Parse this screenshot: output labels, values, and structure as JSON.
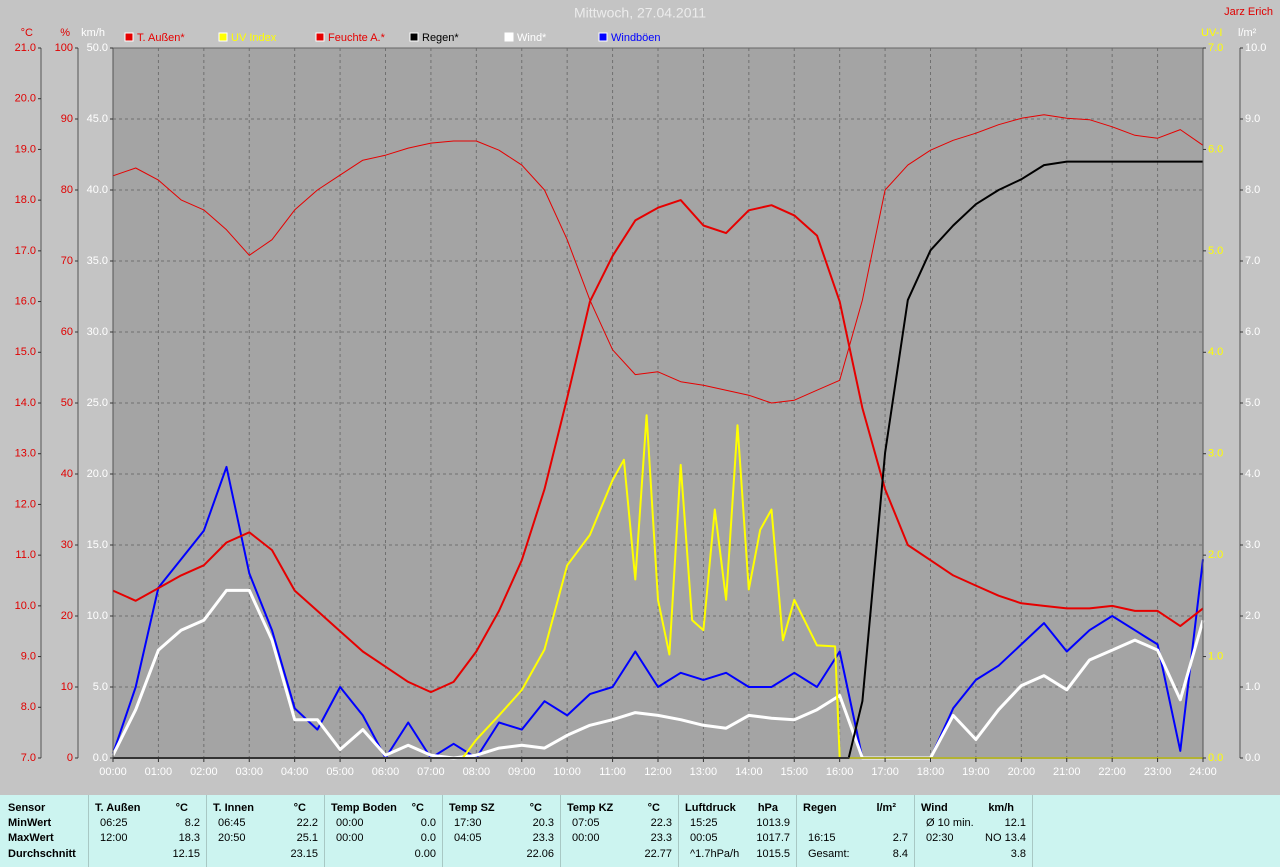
{
  "chart_data": {
    "type": "line",
    "title": "Mittwoch, 27.04.2011",
    "author": "Jarz Erich",
    "xlim": [
      0,
      24
    ],
    "xticks": [
      {
        "value": 0,
        "label": "00:00"
      },
      {
        "value": 1,
        "label": "01:00"
      },
      {
        "value": 2,
        "label": "02:00"
      },
      {
        "value": 3,
        "label": "03:00"
      },
      {
        "value": 4,
        "label": "04:00"
      },
      {
        "value": 5,
        "label": "05:00"
      },
      {
        "value": 6,
        "label": "06:00"
      },
      {
        "value": 7,
        "label": "07:00"
      },
      {
        "value": 8,
        "label": "08:00"
      },
      {
        "value": 9,
        "label": "09:00"
      },
      {
        "value": 10,
        "label": "10:00"
      },
      {
        "value": 11,
        "label": "11:00"
      },
      {
        "value": 12,
        "label": "12:00"
      },
      {
        "value": 13,
        "label": "13:00"
      },
      {
        "value": 14,
        "label": "14:00"
      },
      {
        "value": 15,
        "label": "15:00"
      },
      {
        "value": 16,
        "label": "16:00"
      },
      {
        "value": 17,
        "label": "17:00"
      },
      {
        "value": 18,
        "label": "18:00"
      },
      {
        "value": 19,
        "label": "19:00"
      },
      {
        "value": 20,
        "label": "20:00"
      },
      {
        "value": 21,
        "label": "21:00"
      },
      {
        "value": 22,
        "label": "22:00"
      },
      {
        "value": 23,
        "label": "23:00"
      },
      {
        "value": 24,
        "label": "24:00"
      }
    ],
    "y_axes": [
      {
        "label": "°C",
        "side": "left",
        "color": "#e00000",
        "ylim": [
          7,
          21
        ],
        "yticks": [
          {
            "value": 7,
            "label": "7.0"
          },
          {
            "value": 8,
            "label": "8.0"
          },
          {
            "value": 9,
            "label": "9.0"
          },
          {
            "value": 10,
            "label": "10.0"
          },
          {
            "value": 11,
            "label": "11.0"
          },
          {
            "value": 12,
            "label": "12.0"
          },
          {
            "value": 13,
            "label": "13.0"
          },
          {
            "value": 14,
            "label": "14.0"
          },
          {
            "value": 15,
            "label": "15.0"
          },
          {
            "value": 16,
            "label": "16.0"
          },
          {
            "value": 17,
            "label": "17.0"
          },
          {
            "value": 18,
            "label": "18.0"
          },
          {
            "value": 19,
            "label": "19.0"
          },
          {
            "value": 20,
            "label": "20.0"
          },
          {
            "value": 21,
            "label": "21.0"
          }
        ]
      },
      {
        "label": "%",
        "side": "left",
        "color": "#e00000",
        "ylim": [
          0,
          100
        ],
        "yticks": [
          0,
          10,
          20,
          30,
          40,
          50,
          60,
          70,
          80,
          90,
          100
        ]
      },
      {
        "label": "km/h",
        "side": "left",
        "color": "#ffffff",
        "ylim": [
          0,
          50
        ],
        "grid": true,
        "yticks": [
          {
            "value": 0,
            "label": "0.0"
          },
          {
            "value": 5,
            "label": "5.0"
          },
          {
            "value": 10,
            "label": "10.0"
          },
          {
            "value": 15,
            "label": "15.0"
          },
          {
            "value": 20,
            "label": "20.0"
          },
          {
            "value": 25,
            "label": "25.0"
          },
          {
            "value": 30,
            "label": "30.0"
          },
          {
            "value": 35,
            "label": "35.0"
          },
          {
            "value": 40,
            "label": "40.0"
          },
          {
            "value": 45,
            "label": "45.0"
          },
          {
            "value": 50,
            "label": "50.0"
          }
        ]
      },
      {
        "label": "UV-I",
        "side": "right",
        "color": "#ffff00",
        "ylim": [
          0,
          7
        ],
        "yticks": [
          {
            "value": 0,
            "label": "0.0"
          },
          {
            "value": 1,
            "label": "1.0"
          },
          {
            "value": 2,
            "label": "2.0"
          },
          {
            "value": 3,
            "label": "3.0"
          },
          {
            "value": 4,
            "label": "4.0"
          },
          {
            "value": 5,
            "label": "5.0"
          },
          {
            "value": 6,
            "label": "6.0"
          },
          {
            "value": 7,
            "label": "7.0"
          }
        ]
      },
      {
        "label": "l/m²",
        "side": "right",
        "color": "#ffffff",
        "ylim": [
          0,
          10
        ],
        "yticks": [
          {
            "value": 0,
            "label": "0.0"
          },
          {
            "value": 1,
            "label": "1.0"
          },
          {
            "value": 2,
            "label": "2.0"
          },
          {
            "value": 3,
            "label": "3.0"
          },
          {
            "value": 4,
            "label": "4.0"
          },
          {
            "value": 5,
            "label": "5.0"
          },
          {
            "value": 6,
            "label": "6.0"
          },
          {
            "value": 7,
            "label": "7.0"
          },
          {
            "value": 8,
            "label": "8.0"
          },
          {
            "value": 9,
            "label": "9.0"
          },
          {
            "value": 10,
            "label": "10.0"
          }
        ]
      }
    ],
    "x": [
      0,
      0.5,
      1,
      1.5,
      2,
      2.5,
      3,
      3.5,
      4,
      4.5,
      5,
      5.5,
      6,
      6.5,
      7,
      7.5,
      8,
      8.5,
      9,
      9.5,
      10,
      10.5,
      11,
      11.5,
      12,
      12.5,
      13,
      13.5,
      14,
      14.5,
      15,
      15.5,
      16,
      16.5,
      17,
      17.5,
      18,
      18.5,
      19,
      19.5,
      20,
      20.5,
      21,
      21.5,
      22,
      22.5,
      23,
      23.5,
      24
    ],
    "series": [
      {
        "name": "T. Außen*",
        "color": "#e60000",
        "axis": 0,
        "width": 2,
        "values": [
          10.3,
          10.1,
          10.35,
          10.6,
          10.8,
          11.25,
          11.45,
          11.1,
          10.3,
          9.9,
          9.5,
          9.1,
          8.8,
          8.5,
          8.3,
          8.5,
          9.1,
          9.9,
          10.9,
          12.3,
          14.1,
          16.0,
          16.9,
          17.6,
          17.85,
          18.0,
          17.5,
          17.35,
          17.8,
          17.9,
          17.7,
          17.3,
          16.0,
          13.9,
          12.3,
          11.2,
          10.9,
          10.6,
          10.4,
          10.2,
          10.05,
          10.0,
          9.95,
          9.95,
          10.0,
          9.9,
          9.9,
          9.6,
          9.95
        ]
      },
      {
        "name": "UV Index",
        "color": "#ffff00",
        "axis": 3,
        "width": 2,
        "x": [
          0,
          7.7,
          8,
          8.5,
          9,
          9.5,
          10,
          10.5,
          11,
          11.25,
          11.5,
          11.75,
          12,
          12.25,
          12.5,
          12.75,
          13,
          13.25,
          13.5,
          13.75,
          14,
          14.25,
          14.5,
          14.75,
          15,
          15.5,
          15.9,
          16,
          24
        ],
        "values": [
          0,
          0,
          0.18,
          0.42,
          0.67,
          1.07,
          1.9,
          2.2,
          2.74,
          2.94,
          1.76,
          3.38,
          1.56,
          1.02,
          2.89,
          1.36,
          1.26,
          2.45,
          1.56,
          3.28,
          1.66,
          2.25,
          2.45,
          1.16,
          1.56,
          1.11,
          1.1,
          0,
          0
        ]
      },
      {
        "name": "Feuchte A.*",
        "color": "#e60000",
        "axis": 1,
        "width": 1,
        "values": [
          82,
          83.1,
          81.4,
          78.6,
          77.2,
          74.4,
          70.8,
          73,
          77.2,
          80,
          82.1,
          84.2,
          84.9,
          85.9,
          86.6,
          86.9,
          86.9,
          85.6,
          83.5,
          80,
          73,
          64.5,
          57.5,
          54,
          54.4,
          53,
          52.5,
          51.8,
          51.1,
          50,
          50.4,
          51.8,
          53.2,
          64.5,
          80,
          83.5,
          85.6,
          87,
          88,
          89.2,
          90.1,
          90.6,
          90.1,
          89.9,
          88.9,
          87.7,
          87.3,
          88.5,
          86.3
        ]
      },
      {
        "name": "Regen*",
        "color": "#000000",
        "axis": 4,
        "width": 2,
        "x": [
          0,
          16.2,
          16.5,
          17,
          17.5,
          18,
          18.5,
          19,
          19.5,
          20,
          20.5,
          21,
          24
        ],
        "values": [
          0,
          0,
          0.8,
          4.3,
          6.45,
          7.15,
          7.5,
          7.8,
          8.0,
          8.15,
          8.35,
          8.4,
          8.4
        ]
      },
      {
        "name": "Wind*",
        "color": "#ffffff",
        "axis": 2,
        "width": 3,
        "values": [
          0.2,
          3.4,
          7.6,
          9.0,
          9.7,
          11.8,
          11.8,
          8.3,
          2.7,
          2.7,
          0.6,
          2.0,
          0.2,
          0.9,
          0.2,
          0,
          0.2,
          0.7,
          0.9,
          0.7,
          1.6,
          2.3,
          2.7,
          3.2,
          3.0,
          2.7,
          2.3,
          2.1,
          3.0,
          2.8,
          2.7,
          3.4,
          4.4,
          0,
          0,
          0,
          0,
          3.0,
          1.3,
          3.4,
          5.1,
          5.8,
          4.8,
          6.9,
          7.6,
          8.3,
          7.6,
          4.1,
          9.7
        ]
      },
      {
        "name": "Windböen",
        "color": "#0000ff",
        "axis": 2,
        "width": 2,
        "values": [
          0.3,
          5.0,
          12.0,
          14.0,
          16.0,
          20.5,
          13.0,
          9.0,
          3.5,
          2.0,
          5.0,
          3.0,
          0,
          2.5,
          0,
          1.0,
          0,
          2.5,
          2.0,
          4.0,
          3.0,
          4.5,
          5.0,
          7.5,
          5.0,
          6.0,
          5.5,
          6.0,
          5.0,
          5.0,
          6.0,
          5.0,
          7.5,
          0,
          0,
          0,
          0,
          3.5,
          5.5,
          6.5,
          8.0,
          9.5,
          7.5,
          9.0,
          10.0,
          9.0,
          8.0,
          0.5,
          14.0
        ]
      }
    ]
  },
  "table": {
    "row_labels": [
      "Sensor",
      "MinWert",
      "MaxWert",
      "Durchschnitt"
    ],
    "sections": [
      {
        "name": "T. Außen",
        "unit": "°C",
        "rows": [
          [
            "06:25",
            "8.2"
          ],
          [
            "12:00",
            "18.3"
          ],
          [
            "12.15"
          ]
        ]
      },
      {
        "name": "T. Innen",
        "unit": "°C",
        "rows": [
          [
            "06:45",
            "22.2"
          ],
          [
            "20:50",
            "25.1"
          ],
          [
            "23.15"
          ]
        ]
      },
      {
        "name": "Temp Boden",
        "unit": "°C",
        "rows": [
          [
            "00:00",
            "0.0"
          ],
          [
            "00:00",
            "0.0"
          ],
          [
            "0.00"
          ]
        ]
      },
      {
        "name": "Temp SZ",
        "unit": "°C",
        "rows": [
          [
            "17:30",
            "20.3"
          ],
          [
            "04:05",
            "23.3"
          ],
          [
            "22.06"
          ]
        ]
      },
      {
        "name": "Temp KZ",
        "unit": "°C",
        "rows": [
          [
            "07:05",
            "22.3"
          ],
          [
            "00:00",
            "23.3"
          ],
          [
            "22.77"
          ]
        ]
      },
      {
        "name": "Luftdruck",
        "unit": "hPa",
        "rows": [
          [
            "15:25",
            "1013.9"
          ],
          [
            "00:05",
            "1017.7"
          ],
          [
            "^1.7hPa/h",
            "1015.5"
          ]
        ]
      },
      {
        "name": "Regen",
        "unit": "l/m²",
        "rows": [
          null,
          [
            "16:15",
            "2.7"
          ],
          [
            "Gesamt:",
            "8.4"
          ]
        ]
      },
      {
        "name": "Wind",
        "unit": "km/h",
        "rows": [
          [
            "Ø 10 min.",
            "12.1"
          ],
          [
            "02:30",
            "NO 13.4"
          ],
          [
            "3.8"
          ]
        ]
      }
    ]
  }
}
